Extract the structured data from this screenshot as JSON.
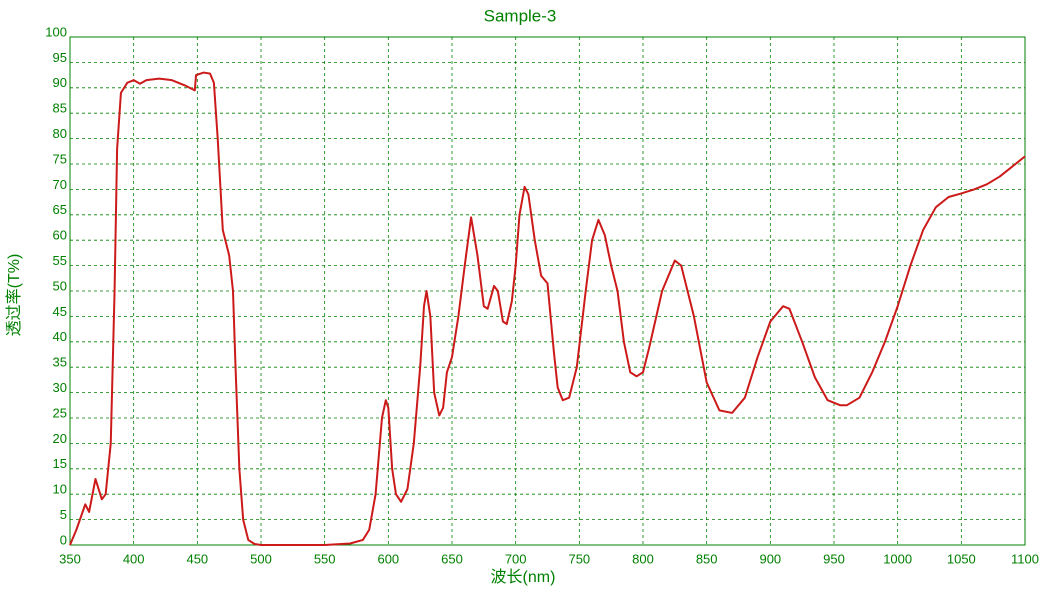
{
  "chart_data": {
    "type": "line",
    "title": "Sample-3",
    "x_label": "波长(nm)",
    "y_label": "透过率(T%)",
    "x": [
      350,
      355,
      362,
      365,
      370,
      375,
      378,
      382,
      385,
      387,
      390,
      395,
      400,
      405,
      410,
      420,
      430,
      440,
      448,
      449,
      455,
      460,
      463,
      466,
      470,
      475,
      478,
      480,
      483,
      486,
      490,
      495,
      500,
      550,
      570,
      580,
      585,
      590,
      595,
      598,
      600,
      603,
      606,
      610,
      615,
      620,
      625,
      628,
      630,
      633,
      636,
      640,
      643,
      646,
      650,
      655,
      660,
      665,
      670,
      675,
      678,
      683,
      686,
      690,
      693,
      697,
      700,
      703,
      707,
      710,
      715,
      720,
      725,
      730,
      733,
      737,
      742,
      748,
      755,
      760,
      765,
      770,
      775,
      780,
      785,
      790,
      795,
      800,
      805,
      815,
      825,
      830,
      840,
      850,
      860,
      870,
      880,
      890,
      900,
      910,
      915,
      925,
      935,
      945,
      955,
      960,
      970,
      980,
      990,
      1000,
      1010,
      1020,
      1030,
      1040,
      1050,
      1060,
      1070,
      1080,
      1090,
      1100
    ],
    "series": [
      {
        "name": "Sample-3",
        "color": "#cc1a1a",
        "values": [
          0,
          3,
          8,
          6.5,
          13,
          9,
          10,
          20,
          50,
          78,
          89,
          91,
          91.5,
          90.8,
          91.5,
          91.8,
          91.5,
          90.5,
          89.5,
          92.5,
          93,
          92.8,
          91,
          80,
          62,
          57,
          50,
          35,
          15,
          5,
          1,
          0.2,
          0,
          0,
          0.3,
          1,
          3,
          10,
          25,
          28.5,
          27,
          15,
          10,
          8.5,
          11,
          20,
          35,
          47,
          50,
          45,
          30,
          25.5,
          27,
          34,
          37,
          45,
          55,
          64.5,
          57,
          47,
          46.5,
          51,
          50,
          44,
          43.5,
          48,
          55,
          65,
          70.5,
          69,
          60,
          53,
          51.5,
          38,
          31,
          28.5,
          29,
          35,
          50,
          60,
          64,
          61,
          55,
          50,
          40,
          34,
          33.2,
          34,
          39,
          50,
          56,
          55,
          45,
          32,
          26.5,
          26,
          29,
          37,
          44,
          47,
          46.5,
          40,
          33,
          28.5,
          27.5,
          27.5,
          29,
          34,
          40,
          47,
          55,
          62,
          66.5,
          68.5,
          69.2,
          70,
          71,
          72.5,
          74.5,
          76.5
        ]
      }
    ],
    "xlim": [
      350,
      1100
    ],
    "xticks": [
      350,
      400,
      450,
      500,
      550,
      600,
      650,
      700,
      750,
      800,
      850,
      900,
      950,
      1000,
      1050,
      1100
    ],
    "ylim": [
      0,
      100
    ],
    "yticks": [
      0,
      5,
      10,
      15,
      20,
      25,
      30,
      35,
      40,
      45,
      50,
      55,
      60,
      65,
      70,
      75,
      80,
      85,
      90,
      95,
      100
    ],
    "grid": true,
    "axis_color": "#008000"
  }
}
